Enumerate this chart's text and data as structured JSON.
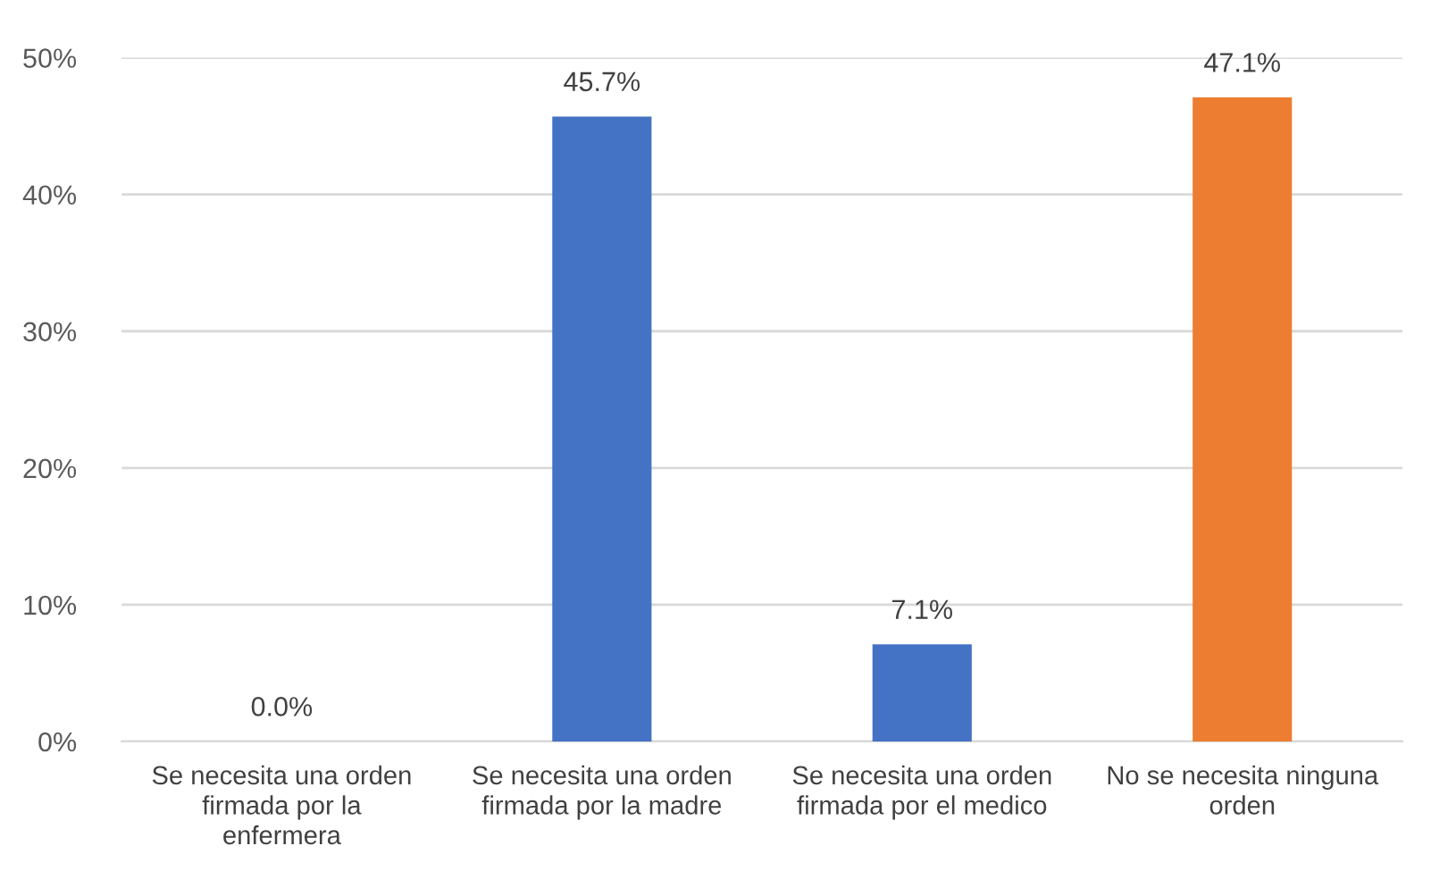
{
  "chart_data": {
    "type": "bar",
    "categories": [
      "Se necesita una orden\nfirmada por la\nenfermera",
      "Se necesita una orden\nfirmada por la madre",
      "Se necesita una orden\nfirmada por el medico",
      "No se necesita ninguna\norden"
    ],
    "values": [
      0.0,
      45.7,
      7.1,
      47.1
    ],
    "colors": [
      "#4472c4",
      "#4472c4",
      "#4472c4",
      "#ed7d31"
    ],
    "value_labels": [
      "0.0%",
      "45.7%",
      "7.1%",
      "47.1%"
    ],
    "ylim": [
      0,
      50
    ],
    "yticks": [
      {
        "value": 0,
        "label": "0%"
      },
      {
        "value": 10,
        "label": "10%"
      },
      {
        "value": 20,
        "label": "20%"
      },
      {
        "value": 30,
        "label": "30%"
      },
      {
        "value": 40,
        "label": "40%"
      },
      {
        "value": 50,
        "label": "50%"
      }
    ],
    "grid": "y"
  }
}
